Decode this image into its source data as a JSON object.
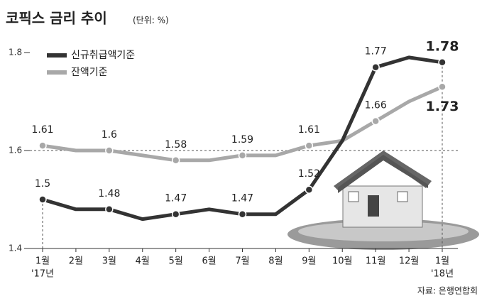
{
  "chart_data": {
    "type": "line",
    "title": "코픽스 금리 추이",
    "unit_note": "(단위: %)",
    "source": "자료: 은행연합회",
    "categories": [
      "1월",
      "2월",
      "3월",
      "4월",
      "5월",
      "6월",
      "7월",
      "8월",
      "9월",
      "10월",
      "11월",
      "12월",
      "1월"
    ],
    "x_year_labels": [
      "'17년",
      null,
      null,
      null,
      null,
      null,
      null,
      null,
      null,
      null,
      null,
      null,
      "'18년"
    ],
    "ylim": [
      1.4,
      1.8
    ],
    "yticks": [
      1.4,
      1.6,
      1.8
    ],
    "series": [
      {
        "name": "신규취급액기준",
        "color": "#333333",
        "values": [
          1.5,
          1.48,
          1.48,
          1.46,
          1.47,
          1.48,
          1.47,
          1.47,
          1.52,
          1.62,
          1.77,
          1.79,
          1.78
        ],
        "value_labels": [
          "1.5",
          null,
          "1.48",
          null,
          "1.47",
          null,
          "1.47",
          null,
          "1.52",
          null,
          "1.77",
          null,
          "1.78"
        ]
      },
      {
        "name": "잔액기준",
        "color": "#a8a8a8",
        "values": [
          1.61,
          1.6,
          1.6,
          1.59,
          1.58,
          1.58,
          1.59,
          1.59,
          1.61,
          1.62,
          1.66,
          1.7,
          1.73
        ],
        "value_labels": [
          "1.61",
          null,
          "1.6",
          null,
          "1.58",
          null,
          "1.59",
          null,
          "1.61",
          null,
          "1.66",
          null,
          "1.73"
        ]
      }
    ]
  }
}
